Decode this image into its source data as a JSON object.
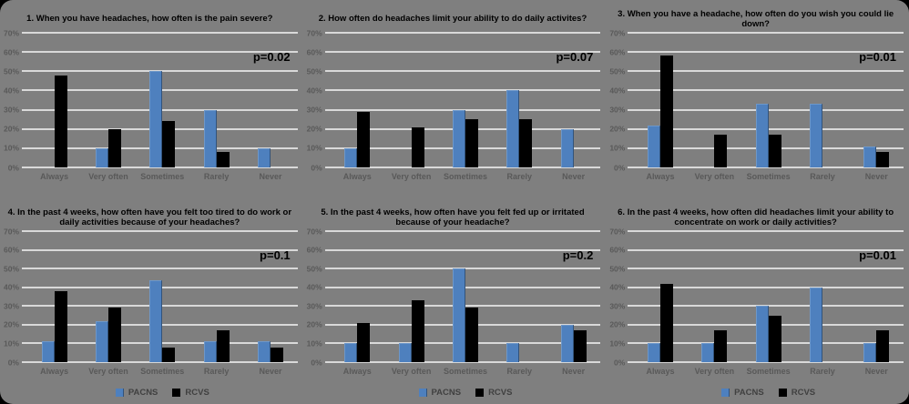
{
  "figure": {
    "background_color": "#7f7f7f",
    "gridline_color": "#d9d9d9",
    "y_axis_ticks": [
      "0%",
      "10%",
      "20%",
      "30%",
      "40%",
      "50%",
      "60%",
      "70%"
    ],
    "legend": {
      "position": "bottom",
      "items": [
        {
          "label": "PACNS",
          "color": "#4e80be"
        },
        {
          "label": "RCVS",
          "color": "#000000"
        }
      ]
    }
  },
  "chart_data": [
    {
      "type": "bar",
      "title": "1. When you have headaches, how often is the pain severe?",
      "p_value": "p=0.02",
      "categories": [
        "Always",
        "Very often",
        "Sometimes",
        "Rarely",
        "Never"
      ],
      "series": [
        {
          "name": "PACNS",
          "color": "#4e80be",
          "values": [
            0,
            10,
            50,
            30,
            10
          ]
        },
        {
          "name": "RCVS",
          "color": "#000000",
          "values": [
            48,
            20,
            24,
            8,
            0
          ]
        }
      ],
      "ylabel": "",
      "xlabel": "",
      "ylim": [
        0,
        70
      ],
      "grid": true,
      "show_legend": false
    },
    {
      "type": "bar",
      "title": "2. How often do headaches limit your ability to do daily activites?",
      "p_value": "p=0.07",
      "categories": [
        "Always",
        "Very often",
        "Sometimes",
        "Rarely",
        "Never"
      ],
      "series": [
        {
          "name": "PACNS",
          "color": "#4e80be",
          "values": [
            10,
            0,
            30,
            40,
            20
          ]
        },
        {
          "name": "RCVS",
          "color": "#000000",
          "values": [
            29,
            21,
            25,
            25,
            0
          ]
        }
      ],
      "ylabel": "",
      "xlabel": "",
      "ylim": [
        0,
        70
      ],
      "grid": true,
      "show_legend": false
    },
    {
      "type": "bar",
      "title": "3. When you have a headache, how often do you wish you could lie down?",
      "p_value": "p=0.01",
      "categories": [
        "Always",
        "Very often",
        "Sometimes",
        "Rarely",
        "Never"
      ],
      "series": [
        {
          "name": "PACNS",
          "color": "#4e80be",
          "values": [
            22,
            0,
            33,
            33,
            11
          ]
        },
        {
          "name": "RCVS",
          "color": "#000000",
          "values": [
            58,
            17,
            17,
            0,
            8
          ]
        }
      ],
      "ylabel": "",
      "xlabel": "",
      "ylim": [
        0,
        70
      ],
      "grid": true,
      "show_legend": false
    },
    {
      "type": "bar",
      "title": "4. In the past 4 weeks, how often have you felt too tired to do work or daily activities because of your headaches?",
      "p_value": "p=0.1",
      "categories": [
        "Always",
        "Very often",
        "Sometimes",
        "Rarely",
        "Never"
      ],
      "series": [
        {
          "name": "PACNS",
          "color": "#4e80be",
          "values": [
            11,
            22,
            44,
            11,
            11
          ]
        },
        {
          "name": "RCVS",
          "color": "#000000",
          "values": [
            38,
            29,
            8,
            17,
            8
          ]
        }
      ],
      "ylabel": "",
      "xlabel": "",
      "ylim": [
        0,
        70
      ],
      "grid": true,
      "show_legend": true
    },
    {
      "type": "bar",
      "title": "5. In the past 4 weeks, how often have you felt fed up or irritated because of your headache?",
      "p_value": "p=0.2",
      "categories": [
        "Always",
        "Very often",
        "Sometimes",
        "Rarely",
        "Never"
      ],
      "series": [
        {
          "name": "PACNS",
          "color": "#4e80be",
          "values": [
            10,
            10,
            50,
            10,
            20
          ]
        },
        {
          "name": "RCVS",
          "color": "#000000",
          "values": [
            21,
            33,
            29,
            0,
            17
          ]
        }
      ],
      "ylabel": "",
      "xlabel": "",
      "ylim": [
        0,
        70
      ],
      "grid": true,
      "show_legend": true
    },
    {
      "type": "bar",
      "title": "6. In the past 4 weeks, how often did headaches limit your ability to concentrate on work or daily activities?",
      "p_value": "p=0.01",
      "categories": [
        "Always",
        "Very often",
        "Sometimes",
        "Rarely",
        "Never"
      ],
      "series": [
        {
          "name": "PACNS",
          "color": "#4e80be",
          "values": [
            10,
            10,
            30,
            40,
            10
          ]
        },
        {
          "name": "RCVS",
          "color": "#000000",
          "values": [
            42,
            17,
            25,
            0,
            17
          ]
        }
      ],
      "ylabel": "",
      "xlabel": "",
      "ylim": [
        0,
        70
      ],
      "grid": true,
      "show_legend": true
    }
  ]
}
